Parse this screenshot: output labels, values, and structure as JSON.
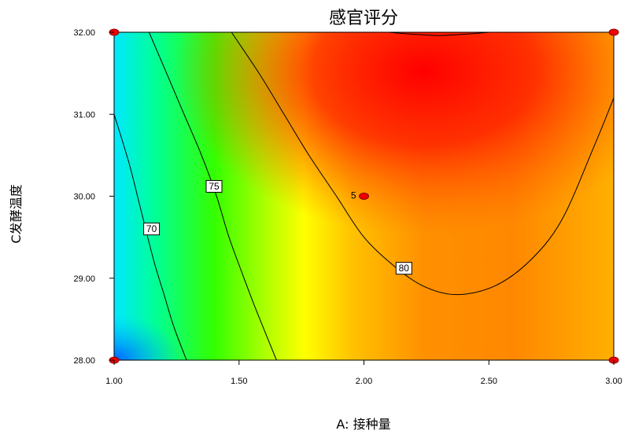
{
  "chart_data": {
    "type": "heatmap",
    "subtype": "contour",
    "title": "感官评分",
    "xlabel": "A: 接种量",
    "ylabel": "C发酵温度",
    "xlim": [
      1.0,
      3.0
    ],
    "ylim": [
      28.0,
      32.0
    ],
    "x_ticks": [
      "1.00",
      "1.50",
      "2.00",
      "2.50",
      "3.00"
    ],
    "y_ticks": [
      "28.00",
      "29.00",
      "30.00",
      "31.00",
      "32.00"
    ],
    "color_scale": [
      "#0066ff",
      "#00ffff",
      "#00ff00",
      "#ffff00",
      "#ff9900",
      "#ff0000"
    ],
    "contour_labels": [
      {
        "text": "70",
        "x": 1.15,
        "y": 29.6
      },
      {
        "text": "75",
        "x": 1.4,
        "y": 30.12
      },
      {
        "text": "80",
        "x": 2.16,
        "y": 29.12
      }
    ],
    "center_point": {
      "x": 2.0,
      "y": 30.0,
      "label": "5"
    },
    "design_points": [
      {
        "x": 1.0,
        "y": 32.0
      },
      {
        "x": 3.0,
        "y": 32.0
      },
      {
        "x": 1.0,
        "y": 28.0
      },
      {
        "x": 3.0,
        "y": 28.0
      }
    ],
    "contours": [
      {
        "level": 70,
        "points": [
          [
            1.0,
            31.0
          ],
          [
            1.06,
            30.4
          ],
          [
            1.11,
            29.8
          ],
          [
            1.16,
            29.2
          ],
          [
            1.2,
            28.8
          ],
          [
            1.24,
            28.4
          ],
          [
            1.29,
            28.0
          ]
        ]
      },
      {
        "level": 75,
        "points": [
          [
            1.14,
            32.0
          ],
          [
            1.21,
            31.5
          ],
          [
            1.28,
            31.0
          ],
          [
            1.35,
            30.5
          ],
          [
            1.41,
            30.0
          ],
          [
            1.46,
            29.5
          ],
          [
            1.52,
            29.0
          ],
          [
            1.57,
            28.6
          ],
          [
            1.65,
            28.0
          ]
        ]
      },
      {
        "level": 80,
        "points": [
          [
            1.47,
            32.0
          ],
          [
            1.58,
            31.5
          ],
          [
            1.68,
            31.0
          ],
          [
            1.78,
            30.5
          ],
          [
            1.89,
            30.0
          ],
          [
            2.0,
            29.5
          ],
          [
            2.12,
            29.15
          ],
          [
            2.24,
            28.9
          ],
          [
            2.37,
            28.8
          ],
          [
            2.52,
            28.9
          ],
          [
            2.66,
            29.2
          ],
          [
            2.79,
            29.7
          ],
          [
            2.92,
            30.6
          ],
          [
            3.0,
            31.2
          ]
        ]
      },
      {
        "level": 85,
        "points": [
          [
            2.1,
            32.0
          ],
          [
            2.18,
            31.98
          ],
          [
            2.3,
            31.96
          ],
          [
            2.42,
            31.98
          ],
          [
            2.5,
            32.0
          ]
        ]
      }
    ]
  }
}
